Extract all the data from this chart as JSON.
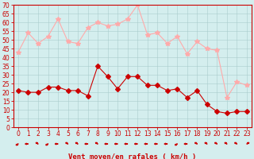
{
  "x": [
    0,
    1,
    2,
    3,
    4,
    5,
    6,
    7,
    8,
    9,
    10,
    11,
    12,
    13,
    14,
    15,
    16,
    17,
    18,
    19,
    20,
    21,
    22,
    23
  ],
  "wind_avg": [
    21,
    20,
    20,
    23,
    23,
    21,
    21,
    18,
    35,
    29,
    22,
    29,
    29,
    24,
    24,
    21,
    22,
    17,
    21,
    13,
    9,
    8,
    9,
    9
  ],
  "wind_gust": [
    43,
    54,
    48,
    52,
    62,
    49,
    48,
    57,
    60,
    58,
    59,
    62,
    70,
    53,
    54,
    48,
    52,
    42,
    49,
    45,
    44,
    17,
    26,
    24
  ],
  "bg_color": "#d4eeee",
  "grid_color": "#aacccc",
  "avg_color": "#cc0000",
  "gust_color": "#ffaaaa",
  "xlabel": "Vent moyen/en rafales ( km/h )",
  "xlim": [
    -0.5,
    23.5
  ],
  "ylim": [
    0,
    70
  ],
  "yticks": [
    0,
    5,
    10,
    15,
    20,
    25,
    30,
    35,
    40,
    45,
    50,
    55,
    60,
    65,
    70
  ],
  "xticks": [
    0,
    1,
    2,
    3,
    4,
    5,
    6,
    7,
    8,
    9,
    10,
    11,
    12,
    13,
    14,
    15,
    16,
    17,
    18,
    19,
    20,
    21,
    22,
    23
  ],
  "tick_fontsize": 5.5,
  "label_fontsize": 6.5,
  "marker_size_avg": 3,
  "marker_size_gust": 4,
  "line_width": 0.8,
  "wind_directions_deg": [
    225,
    270,
    315,
    225,
    270,
    315,
    315,
    270,
    315,
    270,
    270,
    270,
    270,
    270,
    270,
    270,
    225,
    270,
    315,
    315,
    315,
    315,
    315,
    45
  ]
}
